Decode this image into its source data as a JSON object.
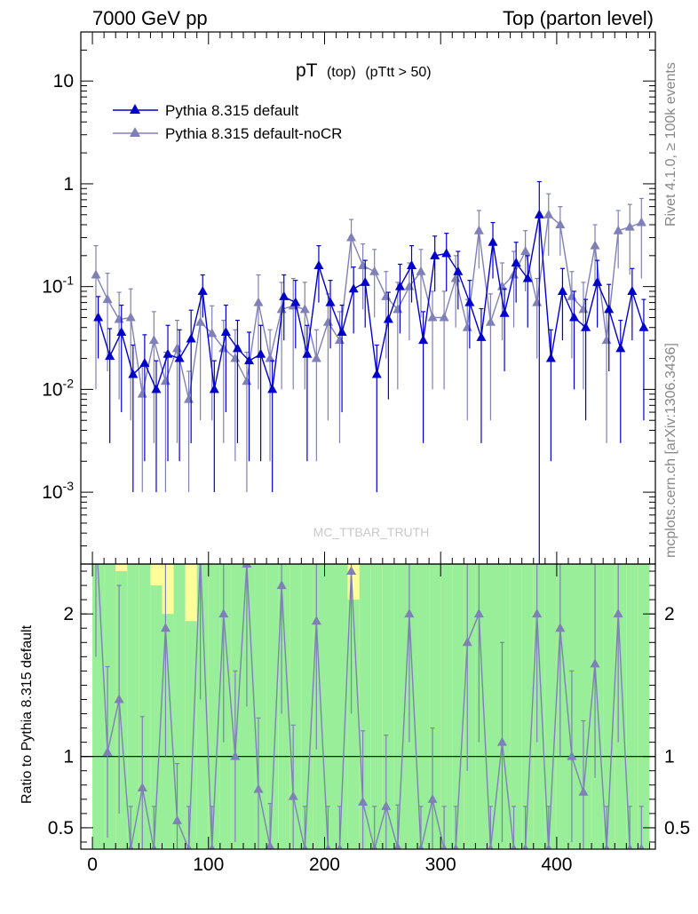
{
  "header": {
    "left": "7000 GeV pp",
    "right": "Top (parton level)"
  },
  "plot_title": {
    "main": "pT",
    "sub1": "(top)",
    "sub2": "(pTtt > 50)"
  },
  "side_labels": {
    "rivet": "Rivet 4.1.0, ≥ 100k events",
    "mcplots": "mcplots.cern.ch [arXiv:1306.3436]"
  },
  "watermark": "MC_TTBAR_TRUTH",
  "colors": {
    "series_default": "#0000cc",
    "series_nocr": "#8080b8",
    "band_green": "#99ee99",
    "band_yellow": "#ffff99"
  },
  "chart_data": [
    {
      "type": "line",
      "panel": "main",
      "title": "pT (top) (pTtt > 50)",
      "xlabel": "",
      "ylabel": "",
      "xlim": [
        -10,
        485
      ],
      "ylim": [
        0.0002,
        30
      ],
      "yscale": "log",
      "yticks": [
        {
          "label": "10",
          "v": 10
        },
        {
          "label": "1",
          "v": 1
        },
        {
          "label": "10^-1",
          "v": 0.1
        },
        {
          "label": "10^-2",
          "v": 0.01
        },
        {
          "label": "10^-3",
          "v": 0.001
        }
      ],
      "legend": [
        "Pythia 8.315 default",
        "Pythia 8.315 default-noCR"
      ],
      "series": [
        {
          "name": "Pythia 8.315 default",
          "x": [
            5,
            15,
            25,
            35,
            45,
            55,
            65,
            75,
            85,
            95,
            105,
            115,
            125,
            135,
            145,
            155,
            165,
            175,
            185,
            195,
            205,
            215,
            225,
            235,
            245,
            255,
            265,
            275,
            285,
            295,
            305,
            315,
            325,
            335,
            345,
            355,
            365,
            375,
            385,
            395,
            405,
            415,
            425,
            435,
            445,
            455,
            465,
            475
          ],
          "y": [
            0.05,
            0.021,
            0.036,
            0.014,
            0.018,
            0.01,
            0.022,
            0.02,
            0.031,
            0.09,
            0.01,
            0.036,
            0.025,
            0.019,
            0.022,
            0.01,
            0.08,
            0.07,
            0.022,
            0.16,
            0.07,
            0.036,
            0.095,
            0.11,
            0.014,
            0.048,
            0.1,
            0.16,
            0.03,
            0.2,
            0.21,
            0.14,
            0.07,
            0.032,
            0.27,
            0.055,
            0.17,
            0.12,
            0.5,
            0.02,
            0.09,
            0.05,
            0.04,
            0.11,
            0.06,
            0.025,
            0.09,
            0.04
          ],
          "err": [
            0.03,
            0.018,
            0.03,
            0.013,
            0.016,
            0.009,
            0.02,
            0.018,
            0.028,
            0.04,
            0.009,
            0.03,
            0.022,
            0.017,
            0.02,
            0.009,
            0.05,
            0.045,
            0.02,
            0.09,
            0.045,
            0.03,
            0.06,
            0.07,
            0.013,
            0.04,
            0.065,
            0.09,
            0.027,
            0.11,
            0.12,
            0.08,
            0.045,
            0.029,
            0.15,
            0.04,
            0.1,
            0.08,
            0.55,
            0.018,
            0.06,
            0.04,
            0.035,
            0.07,
            0.045,
            0.022,
            0.06,
            0.035
          ]
        },
        {
          "name": "Pythia 8.315 default-noCR",
          "x": [
            3,
            13,
            23,
            33,
            43,
            53,
            63,
            73,
            83,
            93,
            103,
            113,
            123,
            133,
            143,
            153,
            163,
            173,
            183,
            193,
            203,
            213,
            223,
            233,
            243,
            253,
            263,
            273,
            283,
            293,
            303,
            313,
            323,
            333,
            343,
            353,
            363,
            373,
            383,
            393,
            403,
            413,
            423,
            433,
            443,
            453,
            463,
            473
          ],
          "y": [
            0.13,
            0.075,
            0.048,
            0.05,
            0.009,
            0.03,
            0.012,
            0.025,
            0.008,
            0.045,
            0.035,
            0.025,
            0.02,
            0.012,
            0.07,
            0.02,
            0.06,
            0.065,
            0.06,
            0.02,
            0.045,
            0.03,
            0.3,
            0.16,
            0.14,
            0.08,
            0.06,
            0.1,
            0.14,
            0.05,
            0.05,
            0.12,
            0.04,
            0.35,
            0.045,
            0.1,
            0.13,
            0.22,
            0.07,
            0.5,
            0.4,
            0.08,
            0.06,
            0.25,
            0.03,
            0.35,
            0.38,
            0.42
          ],
          "err": [
            0.12,
            0.06,
            0.04,
            0.045,
            0.008,
            0.027,
            0.011,
            0.022,
            0.007,
            0.04,
            0.03,
            0.022,
            0.018,
            0.011,
            0.06,
            0.018,
            0.05,
            0.055,
            0.05,
            0.018,
            0.04,
            0.027,
            0.15,
            0.1,
            0.09,
            0.06,
            0.05,
            0.07,
            0.09,
            0.04,
            0.04,
            0.08,
            0.035,
            0.2,
            0.04,
            0.07,
            0.09,
            0.13,
            0.05,
            0.3,
            0.2,
            0.06,
            0.05,
            0.15,
            0.027,
            0.2,
            0.25,
            0.3
          ]
        }
      ]
    },
    {
      "type": "line",
      "panel": "ratio",
      "title": "",
      "xlabel": "",
      "ylabel": "Ratio to Pythia 8.315 default",
      "xlim": [
        -10,
        485
      ],
      "ylim": [
        0.35,
        2.35
      ],
      "xticks": [
        {
          "label": "0",
          "v": 0
        },
        {
          "label": "100",
          "v": 100
        },
        {
          "label": "200",
          "v": 200
        },
        {
          "label": "300",
          "v": 300
        },
        {
          "label": "400",
          "v": 400
        }
      ],
      "yticks": [
        {
          "label": "2",
          "v": 2
        },
        {
          "label": "1",
          "v": 1
        },
        {
          "label": "0.5",
          "v": 0.5
        }
      ],
      "reference_line": 1,
      "band": {
        "x": [
          0,
          10,
          20,
          30,
          40,
          50,
          60,
          70,
          80,
          90,
          100,
          110,
          120,
          130,
          140,
          150,
          160,
          170,
          180,
          190,
          200,
          210,
          220,
          230,
          240,
          250,
          260,
          270,
          280,
          290,
          300,
          310,
          320,
          330,
          340,
          350,
          360,
          370,
          380,
          390,
          400,
          410,
          420,
          430,
          440,
          450,
          460,
          470
        ],
        "green_lo": [
          0.35,
          0.35,
          0.35,
          0.35,
          0.35,
          0.35,
          0.35,
          0.35,
          0.35,
          0.35,
          0.35,
          0.35,
          0.35,
          0.35,
          0.35,
          0.35,
          0.35,
          0.35,
          0.35,
          0.35,
          0.35,
          0.35,
          0.35,
          0.35,
          0.35,
          0.35,
          0.35,
          0.35,
          0.35,
          0.35,
          0.35,
          0.35,
          0.35,
          0.35,
          0.35,
          0.35,
          0.35,
          0.35,
          0.35,
          0.35,
          0.35,
          0.35,
          0.35,
          0.35,
          0.35,
          0.35,
          0.35,
          0.35
        ],
        "green_hi": [
          2.35,
          2.35,
          2.3,
          2.35,
          2.35,
          2.2,
          2.0,
          2.35,
          1.95,
          2.35,
          2.35,
          2.35,
          2.35,
          2.35,
          2.35,
          2.35,
          2.35,
          2.35,
          2.35,
          2.35,
          2.35,
          2.35,
          2.1,
          2.35,
          2.35,
          2.35,
          2.35,
          2.35,
          2.35,
          2.35,
          2.35,
          2.35,
          2.35,
          2.35,
          2.35,
          2.35,
          2.35,
          2.35,
          2.35,
          2.35,
          2.35,
          2.35,
          2.35,
          2.35,
          2.35,
          2.35,
          2.35,
          2.35
        ],
        "yellow_hi": [
          2.35,
          2.35,
          2.35,
          2.35,
          2.35,
          2.35,
          2.35,
          2.35,
          2.35,
          2.35,
          2.35,
          2.35,
          2.35,
          2.35,
          2.35,
          2.35,
          2.35,
          2.35,
          2.35,
          2.35,
          2.35,
          2.35,
          2.35,
          2.35,
          2.35,
          2.35,
          2.35,
          2.35,
          2.35,
          2.35,
          2.35,
          2.35,
          2.35,
          2.35,
          2.35,
          2.35,
          2.35,
          2.35,
          2.35,
          2.35,
          2.35,
          2.35,
          2.35,
          2.35,
          2.35,
          2.35,
          2.35,
          2.35
        ]
      },
      "series": [
        {
          "name": "Pythia 8.315 default-noCR",
          "x": [
            3,
            13,
            23,
            33,
            43,
            53,
            63,
            73,
            83,
            93,
            103,
            113,
            123,
            133,
            143,
            153,
            163,
            173,
            183,
            193,
            203,
            213,
            223,
            233,
            243,
            253,
            263,
            273,
            283,
            293,
            303,
            313,
            323,
            333,
            343,
            353,
            363,
            373,
            383,
            393,
            403,
            413,
            423,
            433,
            443,
            453,
            463,
            473
          ],
          "y": [
            2.6,
            1.03,
            1.4,
            0.35,
            0.78,
            0.35,
            1.9,
            0.55,
            0.35,
            2.4,
            0.35,
            2.0,
            1.0,
            2.35,
            0.77,
            0.37,
            2.2,
            0.72,
            0.35,
            1.95,
            0.35,
            0.35,
            2.3,
            0.68,
            0.35,
            0.65,
            0.36,
            2.0,
            0.35,
            0.7,
            0.35,
            0.35,
            1.8,
            2.0,
            0.35,
            1.1,
            0.35,
            0.35,
            2.0,
            0.35,
            1.9,
            1.0,
            0.75,
            1.65,
            0.35,
            2.0,
            0.35,
            0.35
          ],
          "err": [
            0.9,
            0.6,
            0.8,
            0.3,
            0.5,
            0.3,
            0.9,
            0.4,
            0.3,
            1.0,
            0.3,
            0.9,
            0.6,
            1.0,
            0.5,
            0.3,
            0.9,
            0.5,
            0.3,
            0.9,
            0.3,
            0.3,
            1.0,
            0.5,
            0.3,
            0.5,
            0.3,
            0.9,
            0.3,
            0.5,
            0.3,
            0.3,
            0.9,
            0.9,
            0.3,
            0.7,
            0.3,
            0.3,
            0.9,
            0.3,
            0.9,
            0.6,
            0.5,
            0.8,
            0.3,
            0.9,
            0.3,
            0.3
          ]
        }
      ]
    }
  ]
}
